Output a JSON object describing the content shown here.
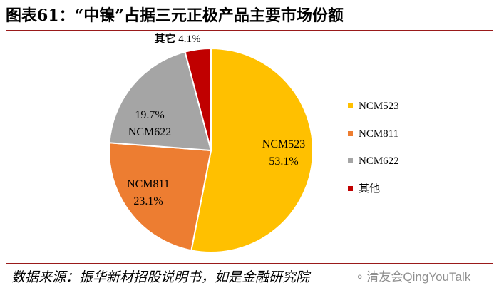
{
  "title": "图表61：“中镍”占据三元正极产品主要市场份额",
  "source": "数据来源：振华新材招股说明书，如是金融研究院",
  "watermark": "清友会QingYouTalk",
  "colors": {
    "accent_rule": "#9a1a1a",
    "NCM523": "#ffc000",
    "NCM811": "#ed7d31",
    "NCM622": "#a5a5a5",
    "其他": "#c00000"
  },
  "chart_data": {
    "type": "pie",
    "categories": [
      "NCM523",
      "NCM811",
      "NCM622",
      "其他"
    ],
    "values": [
      53.1,
      23.1,
      19.7,
      4.1
    ],
    "unit": "%",
    "slice_labels": [
      {
        "name": "NCM523",
        "value": "53.1%"
      },
      {
        "name": "NCM811",
        "value": "23.1%"
      },
      {
        "name": "NCM622",
        "value": "19.7%"
      },
      {
        "name": "其它",
        "value": "4.1%"
      }
    ],
    "legend": [
      "NCM523",
      "NCM811",
      "NCM622",
      "其他"
    ],
    "legend_position": "right"
  }
}
